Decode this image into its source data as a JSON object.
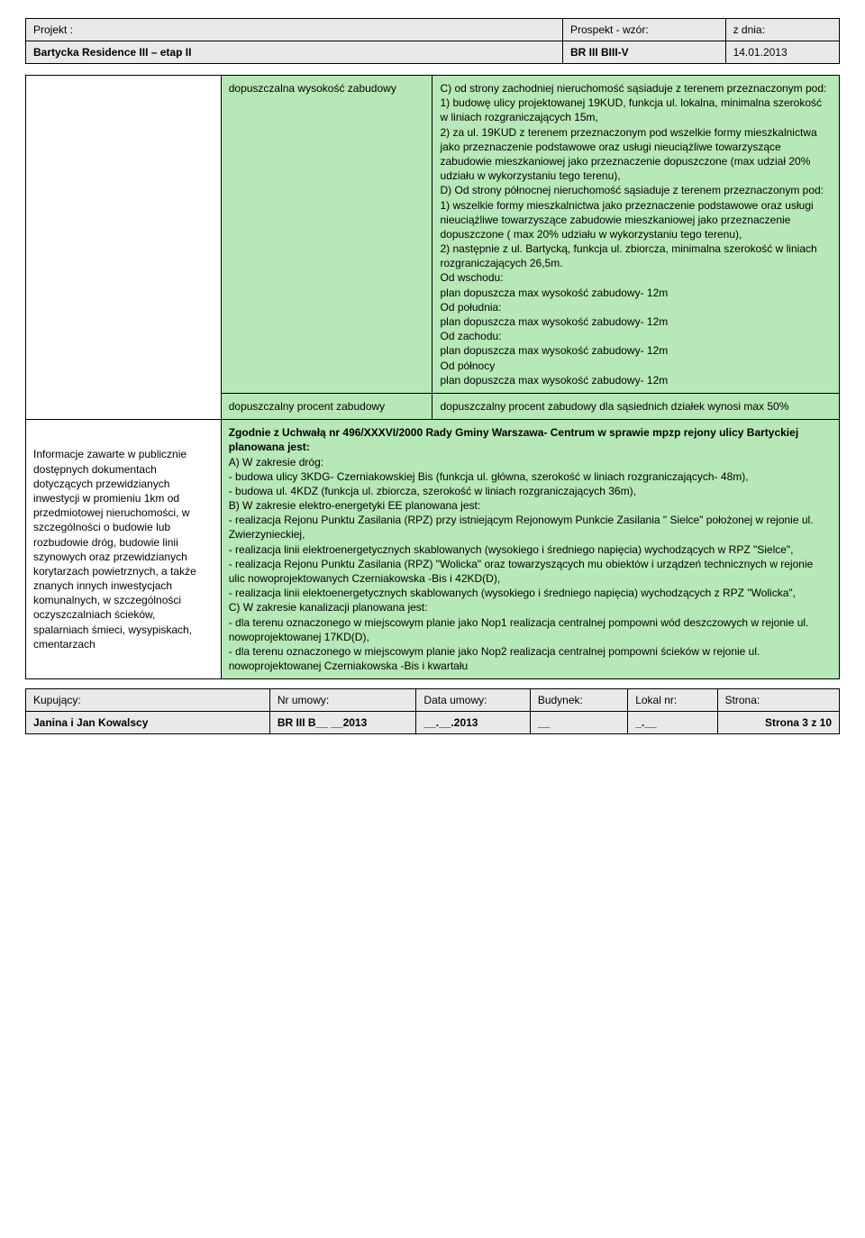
{
  "colors": {
    "header_bg": "#e9e9ea",
    "green_bg": "#b7e8b7",
    "border": "#000000",
    "text": "#000000"
  },
  "header": {
    "row1": {
      "projekt_label": "Projekt :",
      "prospekt_label": "Prospekt - wzór:",
      "zdnia_label": "z dnia:"
    },
    "row2": {
      "projekt_value": "Bartycka Residence III – etap II",
      "prospekt_value": "BR III BIII-V",
      "zdnia_value": "14.01.2013"
    }
  },
  "main": {
    "row1_height_label": "dopuszczalna wysokość zabudowy",
    "row1_right_text": "C) od strony zachodniej nieruchomość sąsiaduje z terenem przeznaczonym pod:\n1) budowę ulicy projektowanej 19KUD, funkcja ul. lokalna, minimalna szerokość w liniach rozgraniczających 15m,\n2) za ul. 19KUD z terenem przeznaczonym pod wszelkie formy mieszkalnictwa jako przeznaczenie podstawowe oraz usługi nieuciążliwe towarzyszące zabudowie mieszkaniowej jako przeznaczenie dopuszczone (max udział 20% udziału w wykorzystaniu tego terenu),\nD) Od strony północnej nieruchomość sąsiaduje z terenem przeznaczonym pod:\n1) wszelkie formy mieszkalnictwa jako przeznaczenie podstawowe oraz usługi nieuciążliwe towarzyszące zabudowie mieszkaniowej jako przeznaczenie dopuszczone ( max 20% udziału w wykorzystaniu tego terenu),\n2) następnie z ul. Bartycką, funkcja ul. zbiorcza, minimalna szerokość w liniach rozgraniczających 26,5m.\nOd wschodu:\nplan dopuszcza max wysokość zabudowy- 12m\nOd południa:\nplan dopuszcza max wysokość zabudowy- 12m\nOd zachodu:\nplan dopuszcza max wysokość zabudowy- 12m\nOd północy\nplan dopuszcza max wysokość zabudowy- 12m",
    "row2_percent_label": "dopuszczalny procent zabudowy",
    "row2_percent_value": "dopuszczalny procent zabudowy dla sąsiednich działek wynosi max 50%",
    "row3_left_label": "Informacje zawarte w publicznie dostępnych dokumentach dotyczących przewidzianych inwestycji w promieniu 1km od przedmiotowej nieruchomości, w szczególności o budowie lub rozbudowie dróg, budowie linii szynowych oraz przewidzianych korytarzach powietrznych, a także znanych innych inwestycjach komunalnych, w szczególności oczyszczalniach ścieków, spalarniach śmieci, wysypiskach, cmentarzach",
    "row3_right_html": "<b>Zgodnie z Uchwałą nr 496/XXXVI/2000 Rady Gminy Warszawa- Centrum w sprawie mpzp rejony ulicy Bartyckiej planowana jest:</b><br>A) W zakresie dróg:<br>- budowa ulicy 3KDG- Czerniakowskiej Bis (funkcja ul. główna, szerokość w liniach rozgraniczających- 48m),<br>- budowa ul. 4KDZ (funkcja ul. zbiorcza, szerokość w liniach rozgraniczających 36m),<br>B) W zakresie elektro-energetyki EE planowana jest:<br>- realizacja Rejonu Punktu Zasilania (RPZ) przy istniejącym Rejonowym Punkcie Zasilania \" Sielce\" położonej w rejonie ul. Zwierzynieckiej,<br>- realizacja linii elektroenergetycznych skablowanych (wysokiego i średniego napięcia) wychodzących w RPZ \"Sielce\",<br>- realizacja Rejonu Punktu Zasilania (RPZ) \"Wolicka\" oraz towarzyszących mu obiektów i urządzeń technicznych w rejonie ulic nowoprojektowanych Czerniakowska -Bis i 42KD(D),<br>- realizacja linii elektoenergetycznych skablowanych (wysokiego i średniego napięcia) wychodzących z RPZ \"Wolicka\",<br>C) W zakresie kanalizacji planowana jest:<br>- dla terenu oznaczonego w miejscowym planie jako Nop1 realizacja centralnej pompowni wód deszczowych w rejonie ul. nowoprojektowanej 17KD(D),<br>- dla terenu oznaczonego w miejscowym planie jako Nop2 realizacja centralnej pompowni ścieków w rejonie ul. nowoprojektowanej Czerniakowska -Bis i kwartału"
  },
  "footer": {
    "row1": {
      "kupujacy_label": "Kupujący:",
      "nr_umowy_label": "Nr umowy:",
      "data_umowy_label": "Data umowy:",
      "budynek_label": "Budynek:",
      "lokal_label": "Lokal nr:",
      "strona_label": "Strona:"
    },
    "row2": {
      "kupujacy_value": "Janina i Jan Kowalscy",
      "nr_umowy_value": "BR III B__ __2013",
      "data_umowy_value": "__.__.2013",
      "budynek_value": "__",
      "lokal_value": "_.__",
      "strona_value": "Strona 3 z 10"
    }
  }
}
